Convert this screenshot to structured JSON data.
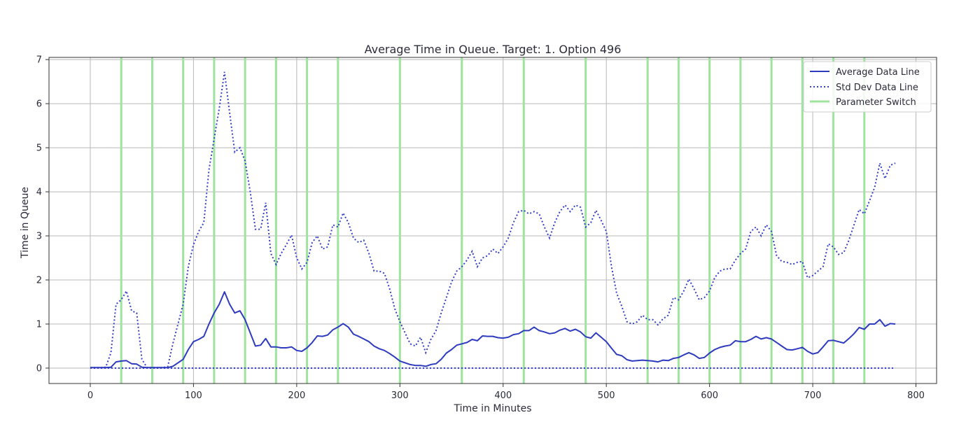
{
  "chart_data": {
    "type": "line",
    "title": "Average Time in Queue. Target: 1. Option 496",
    "xlabel": "Time in Minutes",
    "ylabel": "Time in Queue",
    "xlim": [
      -40,
      820
    ],
    "ylim": [
      -0.35,
      7.05
    ],
    "x_ticks": [
      0,
      100,
      200,
      300,
      400,
      500,
      600,
      700,
      800
    ],
    "y_ticks": [
      0,
      1,
      2,
      3,
      4,
      5,
      6,
      7
    ],
    "grid": true,
    "legend": "top-right",
    "colors": {
      "average": "#2e3bbf",
      "std_dev": "#3440c8",
      "zero_line": "#3440c8",
      "switch": "#9ee39e",
      "grid": "#b8b8b8"
    },
    "parameter_switches": [
      30,
      60,
      90,
      120,
      150,
      180,
      210,
      240,
      300,
      360,
      420,
      480,
      540,
      570,
      600,
      630,
      660,
      690,
      720,
      750
    ],
    "zero_line_x": [
      0,
      780
    ],
    "series": [
      {
        "name": "Average Data Line",
        "style": "solid",
        "x": [
          0,
          5,
          10,
          15,
          20,
          25,
          30,
          35,
          40,
          45,
          50,
          55,
          60,
          65,
          70,
          75,
          80,
          85,
          90,
          95,
          100,
          105,
          110,
          115,
          120,
          125,
          130,
          135,
          140,
          145,
          150,
          155,
          160,
          165,
          170,
          175,
          180,
          185,
          190,
          195,
          200,
          205,
          210,
          215,
          220,
          225,
          230,
          235,
          240,
          245,
          250,
          255,
          260,
          265,
          270,
          275,
          280,
          285,
          290,
          295,
          300,
          305,
          310,
          315,
          320,
          325,
          330,
          335,
          340,
          345,
          350,
          355,
          360,
          365,
          370,
          375,
          380,
          385,
          390,
          395,
          400,
          405,
          410,
          415,
          420,
          425,
          430,
          435,
          440,
          445,
          450,
          455,
          460,
          465,
          470,
          475,
          480,
          485,
          490,
          495,
          500,
          505,
          510,
          515,
          520,
          525,
          530,
          535,
          540,
          545,
          550,
          555,
          560,
          565,
          570,
          575,
          580,
          585,
          590,
          595,
          600,
          605,
          610,
          615,
          620,
          625,
          630,
          635,
          640,
          645,
          650,
          655,
          660,
          665,
          670,
          675,
          680,
          685,
          690,
          695,
          700,
          705,
          710,
          715,
          720,
          725,
          730,
          735,
          740,
          745,
          750,
          755,
          760,
          765,
          770,
          775,
          780
        ],
        "values": [
          0.01,
          0.01,
          0.01,
          0.01,
          0.02,
          0.14,
          0.16,
          0.17,
          0.1,
          0.09,
          0.02,
          0.01,
          0.01,
          0.01,
          0.01,
          0.01,
          0.04,
          0.12,
          0.2,
          0.42,
          0.6,
          0.65,
          0.72,
          1.0,
          1.25,
          1.45,
          1.73,
          1.45,
          1.25,
          1.3,
          1.1,
          0.8,
          0.5,
          0.52,
          0.67,
          0.48,
          0.48,
          0.46,
          0.46,
          0.48,
          0.4,
          0.38,
          0.46,
          0.58,
          0.73,
          0.72,
          0.75,
          0.87,
          0.93,
          1.01,
          0.93,
          0.77,
          0.72,
          0.66,
          0.6,
          0.5,
          0.44,
          0.4,
          0.33,
          0.25,
          0.16,
          0.12,
          0.08,
          0.06,
          0.06,
          0.04,
          0.08,
          0.1,
          0.2,
          0.34,
          0.42,
          0.52,
          0.55,
          0.58,
          0.65,
          0.62,
          0.73,
          0.72,
          0.72,
          0.69,
          0.68,
          0.7,
          0.76,
          0.78,
          0.85,
          0.85,
          0.93,
          0.85,
          0.82,
          0.78,
          0.8,
          0.86,
          0.9,
          0.84,
          0.88,
          0.82,
          0.71,
          0.68,
          0.8,
          0.7,
          0.6,
          0.45,
          0.31,
          0.28,
          0.19,
          0.16,
          0.17,
          0.18,
          0.17,
          0.16,
          0.14,
          0.18,
          0.17,
          0.22,
          0.24,
          0.3,
          0.35,
          0.3,
          0.22,
          0.24,
          0.34,
          0.42,
          0.47,
          0.5,
          0.52,
          0.62,
          0.6,
          0.6,
          0.65,
          0.72,
          0.66,
          0.69,
          0.66,
          0.58,
          0.5,
          0.42,
          0.41,
          0.44,
          0.47,
          0.38,
          0.32,
          0.35,
          0.48,
          0.62,
          0.63,
          0.6,
          0.57,
          0.67,
          0.78,
          0.92,
          0.88,
          1.0,
          1.0,
          1.1,
          0.95,
          1.01,
          1.0
        ]
      },
      {
        "name": "Std Dev Data Line",
        "style": "dotted",
        "x": [
          0,
          5,
          10,
          15,
          20,
          25,
          30,
          35,
          40,
          45,
          50,
          55,
          60,
          65,
          70,
          75,
          80,
          85,
          90,
          95,
          100,
          105,
          110,
          115,
          120,
          125,
          130,
          135,
          140,
          145,
          150,
          155,
          160,
          165,
          170,
          175,
          180,
          185,
          190,
          195,
          200,
          205,
          210,
          215,
          220,
          225,
          230,
          235,
          240,
          245,
          250,
          255,
          260,
          265,
          270,
          275,
          280,
          285,
          290,
          295,
          300,
          305,
          310,
          315,
          320,
          325,
          330,
          335,
          340,
          345,
          350,
          355,
          360,
          365,
          370,
          375,
          380,
          385,
          390,
          395,
          400,
          405,
          410,
          415,
          420,
          425,
          430,
          435,
          440,
          445,
          450,
          455,
          460,
          465,
          470,
          475,
          480,
          485,
          490,
          495,
          500,
          505,
          510,
          515,
          520,
          525,
          530,
          535,
          540,
          545,
          550,
          555,
          560,
          565,
          570,
          575,
          580,
          585,
          590,
          595,
          600,
          605,
          610,
          615,
          620,
          625,
          630,
          635,
          640,
          645,
          650,
          655,
          660,
          665,
          670,
          675,
          680,
          685,
          690,
          695,
          700,
          705,
          710,
          715,
          720,
          725,
          730,
          735,
          740,
          745,
          750,
          755,
          760,
          765,
          770,
          775,
          780
        ],
        "values": [
          0.01,
          0.01,
          0.01,
          0.02,
          0.35,
          1.45,
          1.55,
          1.75,
          1.3,
          1.25,
          0.2,
          0.01,
          0.01,
          0.01,
          0.01,
          0.03,
          0.55,
          1.0,
          1.45,
          2.3,
          2.8,
          3.1,
          3.3,
          4.5,
          5.2,
          5.9,
          6.72,
          5.8,
          4.9,
          5.0,
          4.7,
          4.0,
          3.15,
          3.15,
          3.75,
          2.6,
          2.35,
          2.6,
          2.8,
          3.02,
          2.5,
          2.25,
          2.4,
          2.85,
          3.0,
          2.7,
          2.75,
          3.25,
          3.2,
          3.52,
          3.3,
          2.95,
          2.85,
          2.9,
          2.6,
          2.2,
          2.2,
          2.15,
          1.8,
          1.35,
          1.05,
          0.8,
          0.55,
          0.5,
          0.7,
          0.35,
          0.65,
          0.85,
          1.25,
          1.6,
          1.95,
          2.2,
          2.3,
          2.45,
          2.65,
          2.3,
          2.5,
          2.55,
          2.7,
          2.6,
          2.75,
          2.95,
          3.3,
          3.55,
          3.58,
          3.5,
          3.55,
          3.5,
          3.2,
          2.95,
          3.3,
          3.55,
          3.7,
          3.55,
          3.7,
          3.65,
          3.2,
          3.3,
          3.58,
          3.35,
          3.1,
          2.3,
          1.7,
          1.4,
          1.05,
          1.0,
          1.05,
          1.2,
          1.1,
          1.1,
          0.98,
          1.12,
          1.2,
          1.6,
          1.55,
          1.75,
          2.02,
          1.8,
          1.55,
          1.6,
          1.75,
          2.05,
          2.2,
          2.25,
          2.25,
          2.45,
          2.6,
          2.7,
          3.1,
          3.2,
          3.0,
          3.25,
          3.1,
          2.55,
          2.42,
          2.4,
          2.35,
          2.4,
          2.42,
          2.05,
          2.1,
          2.2,
          2.3,
          2.82,
          2.75,
          2.58,
          2.62,
          2.9,
          3.25,
          3.6,
          3.5,
          3.8,
          4.1,
          4.65,
          4.3,
          4.6,
          4.65
        ]
      },
      {
        "name": "Parameter Switch",
        "style": "vertical-lines"
      }
    ]
  }
}
